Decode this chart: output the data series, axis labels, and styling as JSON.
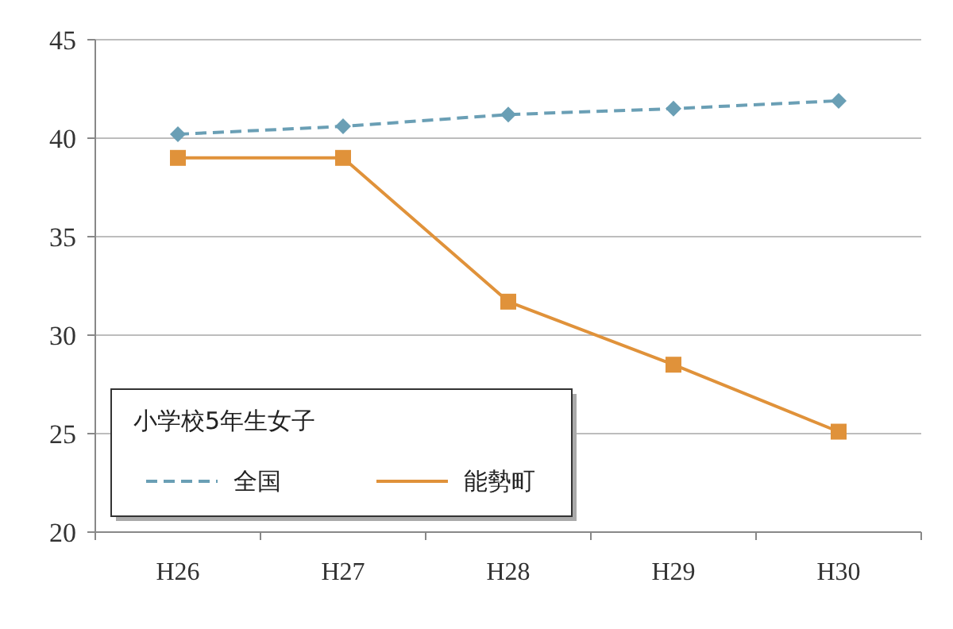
{
  "chart_data": {
    "type": "line",
    "categories": [
      "H26",
      "H27",
      "H28",
      "H29",
      "H30"
    ],
    "series": [
      {
        "name": "全国",
        "color": "#6a9fb5",
        "values": [
          40.2,
          40.6,
          41.2,
          41.5,
          41.9
        ],
        "marker": "diamond",
        "line_style": "dashed"
      },
      {
        "name": "能勢町",
        "color": "#e0923a",
        "values": [
          39.0,
          39.0,
          31.7,
          28.5,
          25.1
        ],
        "marker": "square",
        "line_style": "solid"
      }
    ],
    "ylim": [
      20,
      45
    ],
    "yticks": [
      20,
      25,
      30,
      35,
      40,
      45
    ],
    "grid": "y",
    "legend": "bottom left",
    "legend_title": "小学校5年生女子"
  }
}
